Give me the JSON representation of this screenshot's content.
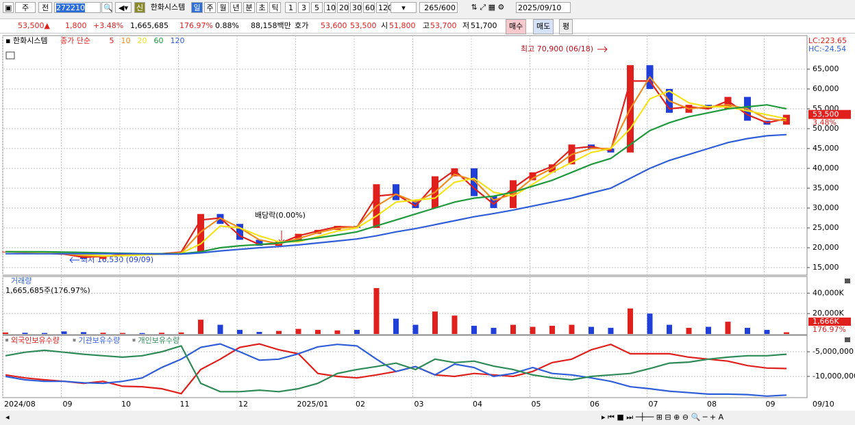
{
  "toolbar": {
    "period": "주",
    "prev": "전",
    "code": "272210",
    "badge": "신",
    "name": "한화시스템",
    "intervals": [
      "일",
      "주",
      "월",
      "년",
      "분",
      "초",
      "틱"
    ],
    "minutes": [
      "1",
      "3",
      "5",
      "10",
      "20",
      "30",
      "60",
      "120"
    ],
    "count": "265/600",
    "date": "2025/09/10"
  },
  "quote": {
    "price": "53,500▲",
    "change": "1,800",
    "rate": "+3.48%",
    "volume": "1,665,685",
    "volume_rate": "176.97%",
    "turnover": "0.88%",
    "amount": "88,158백만",
    "ask_label": "호가",
    "ask": "53,600",
    "bid": "53,500",
    "open_label": "시",
    "open": "51,800",
    "high_label": "고",
    "high": "53,700",
    "low_label": "저",
    "low": "51,700",
    "buy": "매수",
    "sell": "매도",
    "eval": "평"
  },
  "chart_data": [
    {
      "type": "candle",
      "title": "한화시스템",
      "legend_prefix": "종가 단순",
      "categories": [
        "2024/08",
        null,
        null,
        "09",
        null,
        null,
        "10",
        null,
        null,
        "11",
        null,
        null,
        "12",
        null,
        null,
        "2025/01",
        null,
        null,
        "02",
        null,
        null,
        "03",
        null,
        null,
        "04",
        null,
        null,
        "05",
        null,
        null,
        "06",
        null,
        null,
        "07",
        null,
        null,
        "08",
        null,
        null,
        "09",
        null
      ],
      "x_end_label": "09/10",
      "values": [
        19000,
        18800,
        18500,
        18300,
        17200,
        18000,
        18400,
        18300,
        18600,
        19000,
        28500,
        26000,
        22000,
        20500,
        21500,
        23500,
        24500,
        25500,
        25000,
        36000,
        32000,
        30000,
        38000,
        40000,
        33000,
        30000,
        37000,
        39000,
        41000,
        46000,
        45000,
        44000,
        66000,
        60000,
        54000,
        56000,
        55000,
        58000,
        52000,
        51000,
        53500
      ],
      "up_color": "#e0201c",
      "down_color": "#1f3fd8",
      "series": [
        {
          "name": "5",
          "color": "#e0201c",
          "values": [
            19000,
            18900,
            18600,
            18400,
            17600,
            17800,
            18300,
            18300,
            18500,
            18900,
            27000,
            27500,
            23000,
            20800,
            21000,
            23000,
            24200,
            25300,
            25200,
            33000,
            33500,
            30500,
            36000,
            39500,
            35000,
            31000,
            35000,
            38500,
            40500,
            45000,
            45500,
            44500,
            62000,
            62000,
            55000,
            55500,
            55000,
            57000,
            53500,
            51500,
            52500
          ]
        },
        {
          "name": "10",
          "color": "#f08c1e",
          "values": [
            19000,
            18950,
            18700,
            18500,
            18000,
            17800,
            18100,
            18200,
            18400,
            18700,
            24000,
            27500,
            25000,
            22000,
            21000,
            22300,
            23800,
            24900,
            25300,
            30500,
            33500,
            31500,
            34000,
            38500,
            37000,
            32000,
            33500,
            37500,
            40000,
            43500,
            45000,
            45000,
            55000,
            63000,
            57000,
            55000,
            55500,
            56000,
            55000,
            52500,
            52000
          ]
        },
        {
          "name": "20",
          "color": "#f5e21a",
          "values": [
            19000,
            19000,
            18800,
            18600,
            18300,
            18000,
            18000,
            18200,
            18400,
            18600,
            21000,
            25500,
            25000,
            23000,
            21500,
            21500,
            22800,
            24200,
            25000,
            28000,
            31500,
            32000,
            32500,
            36500,
            37500,
            34000,
            33000,
            36000,
            39000,
            41500,
            44000,
            45000,
            50000,
            57500,
            59500,
            56500,
            55500,
            55500,
            54500,
            53500,
            52500
          ]
        },
        {
          "name": "60",
          "color": "#1f9a3c",
          "values": [
            19000,
            19000,
            19000,
            18900,
            18800,
            18700,
            18600,
            18500,
            18500,
            18500,
            19000,
            20000,
            20500,
            20800,
            21200,
            21800,
            22500,
            23200,
            24000,
            25500,
            27000,
            28500,
            30000,
            31500,
            32500,
            33000,
            34000,
            35500,
            37000,
            39000,
            41000,
            42500,
            46000,
            49500,
            51500,
            53000,
            54000,
            55000,
            55500,
            56000,
            55000
          ]
        },
        {
          "name": "120",
          "color": "#2f5ed8",
          "values": [
            18500,
            18500,
            18500,
            18500,
            18500,
            18500,
            18500,
            18500,
            18400,
            18400,
            18700,
            19200,
            19600,
            20000,
            20300,
            20700,
            21200,
            21700,
            22200,
            23000,
            24000,
            24800,
            25800,
            26800,
            27800,
            28600,
            29500,
            30500,
            31500,
            32500,
            33800,
            35000,
            37500,
            40000,
            42000,
            43500,
            45000,
            46500,
            47500,
            48200,
            48500
          ]
        }
      ],
      "ylim": [
        13100,
        73450
      ],
      "yticks": [
        {
          "value": 15000,
          "label": "15,000"
        },
        {
          "value": 20000,
          "label": "20,000"
        },
        {
          "value": 25000,
          "label": "25,000"
        },
        {
          "value": 30000,
          "label": "30,000"
        },
        {
          "value": 35000,
          "label": "35,000"
        },
        {
          "value": 40000,
          "label": "40,000"
        },
        {
          "value": 45000,
          "label": "45,000"
        },
        {
          "value": 50000,
          "label": "50,000"
        },
        {
          "value": 55000,
          "label": "55,000"
        },
        {
          "value": 60000,
          "label": "60,000"
        },
        {
          "value": 65000,
          "label": "65,000"
        }
      ],
      "grid": true,
      "last_label": "53,500",
      "last_change": "3.48%",
      "lc_label": "LC:223.65",
      "hc_label": "HC:-24.54",
      "annotations": [
        "최고 70,900 (06/18)",
        "최저 16,530 (09/09)",
        "배당락(0.00%)"
      ]
    },
    {
      "type": "bar",
      "title": "거래량",
      "subtitle": "1,665,685주(176.97%)",
      "values": [
        1500,
        1200,
        1000,
        2500,
        1800,
        1200,
        1000,
        900,
        1200,
        1500,
        14000,
        9000,
        4000,
        2000,
        3000,
        5000,
        4000,
        3500,
        4000,
        45000,
        15000,
        9000,
        22000,
        18000,
        8000,
        6000,
        9000,
        7000,
        8000,
        9000,
        7000,
        6000,
        25000,
        20000,
        9000,
        6000,
        7000,
        12000,
        6000,
        4000,
        1666
      ],
      "ylim": [
        0,
        55000
      ],
      "yticks": [
        {
          "value": 20000,
          "label": "20,000K"
        },
        {
          "value": 40000,
          "label": "40,000K"
        }
      ],
      "grid": true,
      "last_label": "1,666K",
      "last_change": "176.97%"
    },
    {
      "type": "line",
      "series": [
        {
          "name": "외국인보유수량",
          "color": "#e0201c",
          "values": [
            -9700000,
            -10300000,
            -10700000,
            -11000000,
            -11400000,
            -11000000,
            -12000000,
            -12100000,
            -12500000,
            -13500000,
            -8600000,
            -6500000,
            -4100000,
            -3400000,
            -4600000,
            -5400000,
            -9400000,
            -10000000,
            -10300000,
            -9700000,
            -9000000,
            -8000000,
            -9700000,
            -10000000,
            -9400000,
            -9700000,
            -10000000,
            -9000000,
            -7200000,
            -6500000,
            -4600000,
            -3500000,
            -5400000,
            -5400000,
            -5400000,
            -6100000,
            -6500000,
            -6900000,
            -7800000,
            -8300000,
            -8400000
          ]
        },
        {
          "name": "기관보유수량",
          "color": "#2f5ed8",
          "values": [
            -10000000,
            -10700000,
            -11000000,
            -11000000,
            -11300000,
            -11400000,
            -11000000,
            -10300000,
            -8200000,
            -6500000,
            -4100000,
            -3400000,
            -5000000,
            -6700000,
            -6500000,
            -5400000,
            -4000000,
            -3500000,
            -3800000,
            -6500000,
            -9000000,
            -8000000,
            -9700000,
            -7500000,
            -8200000,
            -10000000,
            -9400000,
            -8200000,
            -9400000,
            -9700000,
            -10300000,
            -11000000,
            -12100000,
            -12500000,
            -13000000,
            -13300000,
            -13600000,
            -13600000,
            -13700000,
            -14000000,
            -13800000
          ]
        },
        {
          "name": "개인보유수량",
          "color": "#2e8b57",
          "values": [
            -5800000,
            -5100000,
            -4700000,
            -5100000,
            -5500000,
            -5800000,
            -6100000,
            -5800000,
            -5000000,
            -3800000,
            -11400000,
            -13100000,
            -13100000,
            -12800000,
            -13100000,
            -12500000,
            -11400000,
            -9400000,
            -8600000,
            -8000000,
            -7300000,
            -8600000,
            -6500000,
            -7200000,
            -6900000,
            -7900000,
            -8600000,
            -9700000,
            -10300000,
            -10700000,
            -10000000,
            -9700000,
            -9400000,
            -8400000,
            -7300000,
            -7100000,
            -6500000,
            -6100000,
            -5800000,
            -5800000,
            -5500000
          ]
        }
      ],
      "ylim": [
        -14170000,
        -1940000
      ],
      "yticks": [
        {
          "value": -10000000,
          "label": "-10,000,000"
        },
        {
          "value": -5000000,
          "label": "-5,000,000"
        }
      ],
      "grid": true
    }
  ]
}
